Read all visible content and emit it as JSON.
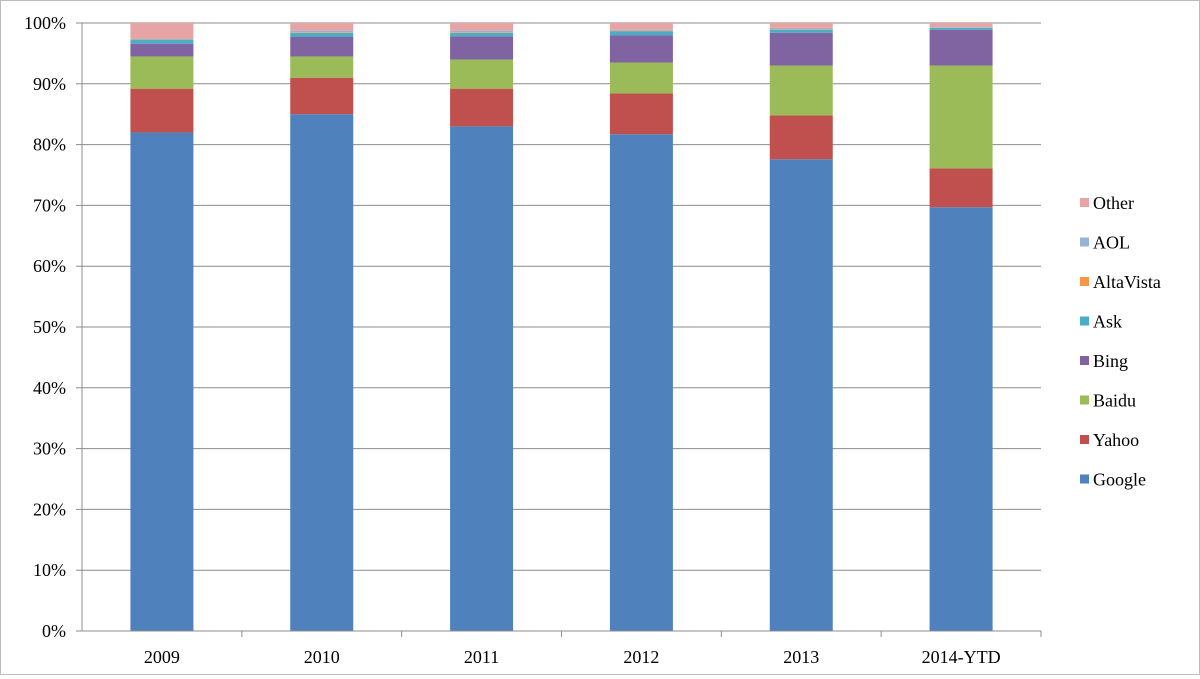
{
  "chart_data": {
    "type": "bar",
    "stacked": true,
    "categories": [
      "2009",
      "2010",
      "2011",
      "2012",
      "2013",
      "2014-YTD"
    ],
    "ylim": [
      0,
      100
    ],
    "yticks": [
      "0%",
      "10%",
      "20%",
      "30%",
      "40%",
      "50%",
      "60%",
      "70%",
      "80%",
      "90%",
      "100%"
    ],
    "grid": true,
    "legend_position": "right",
    "series": [
      {
        "name": "Google",
        "color": "#4F81BD",
        "values": [
          82.0,
          85.0,
          83.0,
          81.7,
          77.6,
          69.7
        ]
      },
      {
        "name": "Yahoo",
        "color": "#C0504D",
        "values": [
          7.2,
          6.0,
          6.2,
          6.7,
          7.2,
          6.4
        ]
      },
      {
        "name": "Baidu",
        "color": "#9BBB59",
        "values": [
          5.3,
          3.5,
          4.8,
          5.1,
          8.2,
          16.9
        ]
      },
      {
        "name": "Bing",
        "color": "#8064A2",
        "values": [
          2.1,
          3.2,
          3.8,
          4.5,
          5.4,
          5.9
        ]
      },
      {
        "name": "Ask",
        "color": "#4BACC6",
        "values": [
          0.6,
          0.7,
          0.6,
          0.6,
          0.5,
          0.3
        ]
      },
      {
        "name": "AltaVista",
        "color": "#F79646",
        "values": [
          0.1,
          0.1,
          0.1,
          0.1,
          0.1,
          0.0
        ]
      },
      {
        "name": "AOL",
        "color": "#95B3D7",
        "values": [
          0.2,
          0.2,
          0.2,
          0.2,
          0.2,
          0.1
        ]
      },
      {
        "name": "Other",
        "color": "#E6A5A4",
        "values": [
          2.5,
          1.3,
          1.3,
          1.1,
          0.8,
          0.7
        ]
      }
    ]
  }
}
